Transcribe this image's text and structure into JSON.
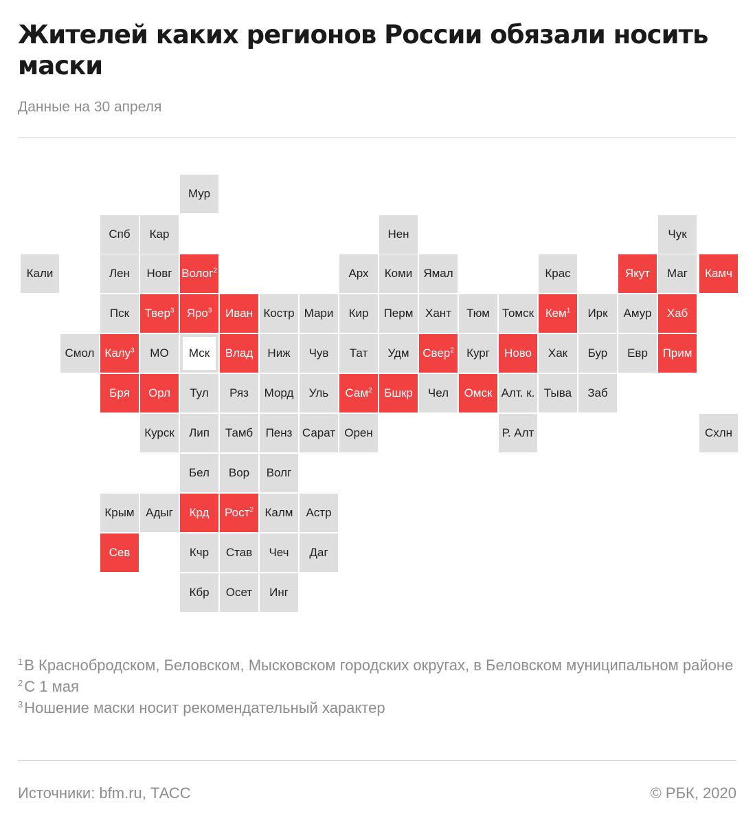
{
  "header": {
    "title": "Жителей каких регионов России обязали носить маски",
    "subtitle": "Данные на 30 апреля"
  },
  "colors": {
    "masked": "#f24141",
    "default": "#dedede",
    "text": "#222222",
    "muted": "#8d8d8d"
  },
  "map": {
    "regions": [
      {
        "label": "Мур",
        "row": 0,
        "col": 4,
        "status": "none"
      },
      {
        "label": "Спб",
        "row": 1,
        "col": 2,
        "status": "none"
      },
      {
        "label": "Кар",
        "row": 1,
        "col": 3,
        "status": "none"
      },
      {
        "label": "Нен",
        "row": 1,
        "col": 9,
        "status": "none"
      },
      {
        "label": "Чук",
        "row": 1,
        "col": 16,
        "status": "none"
      },
      {
        "label": "Кали",
        "row": 2,
        "col": 0,
        "status": "none"
      },
      {
        "label": "Лен",
        "row": 2,
        "col": 2,
        "status": "none"
      },
      {
        "label": "Новг",
        "row": 2,
        "col": 3,
        "status": "none"
      },
      {
        "label": "Волог",
        "row": 2,
        "col": 4,
        "status": "masked",
        "note": "2"
      },
      {
        "label": "Арх",
        "row": 2,
        "col": 8,
        "status": "none"
      },
      {
        "label": "Коми",
        "row": 2,
        "col": 9,
        "status": "none"
      },
      {
        "label": "Ямал",
        "row": 2,
        "col": 10,
        "status": "none"
      },
      {
        "label": "Крас",
        "row": 2,
        "col": 13,
        "status": "none"
      },
      {
        "label": "Якут",
        "row": 2,
        "col": 15,
        "status": "masked"
      },
      {
        "label": "Маг",
        "row": 2,
        "col": 16,
        "status": "none"
      },
      {
        "label": "Камч",
        "row": 2,
        "col": 17,
        "status": "masked"
      },
      {
        "label": "Пск",
        "row": 3,
        "col": 2,
        "status": "none"
      },
      {
        "label": "Твер",
        "row": 3,
        "col": 3,
        "status": "masked",
        "note": "3"
      },
      {
        "label": "Яро",
        "row": 3,
        "col": 4,
        "status": "masked",
        "note": "3"
      },
      {
        "label": "Иван",
        "row": 3,
        "col": 5,
        "status": "masked"
      },
      {
        "label": "Костр",
        "row": 3,
        "col": 6,
        "status": "none"
      },
      {
        "label": "Мари",
        "row": 3,
        "col": 7,
        "status": "none"
      },
      {
        "label": "Кир",
        "row": 3,
        "col": 8,
        "status": "none"
      },
      {
        "label": "Перм",
        "row": 3,
        "col": 9,
        "status": "none"
      },
      {
        "label": "Хант",
        "row": 3,
        "col": 10,
        "status": "none"
      },
      {
        "label": "Тюм",
        "row": 3,
        "col": 11,
        "status": "none"
      },
      {
        "label": "Томск",
        "row": 3,
        "col": 12,
        "status": "none"
      },
      {
        "label": "Кем",
        "row": 3,
        "col": 13,
        "status": "masked",
        "note": "1"
      },
      {
        "label": "Ирк",
        "row": 3,
        "col": 14,
        "status": "none"
      },
      {
        "label": "Амур",
        "row": 3,
        "col": 15,
        "status": "none"
      },
      {
        "label": "Хаб",
        "row": 3,
        "col": 16,
        "status": "masked"
      },
      {
        "label": "Смол",
        "row": 4,
        "col": 1,
        "status": "none"
      },
      {
        "label": "Калу",
        "row": 4,
        "col": 2,
        "status": "masked",
        "note": "3"
      },
      {
        "label": "МО",
        "row": 4,
        "col": 3,
        "status": "none"
      },
      {
        "label": "Мск",
        "row": 4,
        "col": 4,
        "status": "capital"
      },
      {
        "label": "Влад",
        "row": 4,
        "col": 5,
        "status": "masked"
      },
      {
        "label": "Ниж",
        "row": 4,
        "col": 6,
        "status": "none"
      },
      {
        "label": "Чув",
        "row": 4,
        "col": 7,
        "status": "none"
      },
      {
        "label": "Тат",
        "row": 4,
        "col": 8,
        "status": "none"
      },
      {
        "label": "Удм",
        "row": 4,
        "col": 9,
        "status": "none"
      },
      {
        "label": "Свер",
        "row": 4,
        "col": 10,
        "status": "masked",
        "note": "2"
      },
      {
        "label": "Кург",
        "row": 4,
        "col": 11,
        "status": "none"
      },
      {
        "label": "Ново",
        "row": 4,
        "col": 12,
        "status": "masked"
      },
      {
        "label": "Хак",
        "row": 4,
        "col": 13,
        "status": "none"
      },
      {
        "label": "Бур",
        "row": 4,
        "col": 14,
        "status": "none"
      },
      {
        "label": "Евр",
        "row": 4,
        "col": 15,
        "status": "none"
      },
      {
        "label": "Прим",
        "row": 4,
        "col": 16,
        "status": "masked"
      },
      {
        "label": "Бря",
        "row": 5,
        "col": 2,
        "status": "masked"
      },
      {
        "label": "Орл",
        "row": 5,
        "col": 3,
        "status": "masked"
      },
      {
        "label": "Тул",
        "row": 5,
        "col": 4,
        "status": "none"
      },
      {
        "label": "Ряз",
        "row": 5,
        "col": 5,
        "status": "none"
      },
      {
        "label": "Морд",
        "row": 5,
        "col": 6,
        "status": "none"
      },
      {
        "label": "Уль",
        "row": 5,
        "col": 7,
        "status": "none"
      },
      {
        "label": "Сам",
        "row": 5,
        "col": 8,
        "status": "masked",
        "note": "2"
      },
      {
        "label": "Бшкр",
        "row": 5,
        "col": 9,
        "status": "masked"
      },
      {
        "label": "Чел",
        "row": 5,
        "col": 10,
        "status": "none"
      },
      {
        "label": "Омск",
        "row": 5,
        "col": 11,
        "status": "masked"
      },
      {
        "label": "Алт. к.",
        "row": 5,
        "col": 12,
        "status": "none"
      },
      {
        "label": "Тыва",
        "row": 5,
        "col": 13,
        "status": "none"
      },
      {
        "label": "Заб",
        "row": 5,
        "col": 14,
        "status": "none"
      },
      {
        "label": "Курск",
        "row": 6,
        "col": 3,
        "status": "none"
      },
      {
        "label": "Лип",
        "row": 6,
        "col": 4,
        "status": "none"
      },
      {
        "label": "Тамб",
        "row": 6,
        "col": 5,
        "status": "none"
      },
      {
        "label": "Пенз",
        "row": 6,
        "col": 6,
        "status": "none"
      },
      {
        "label": "Сарат",
        "row": 6,
        "col": 7,
        "status": "none"
      },
      {
        "label": "Орен",
        "row": 6,
        "col": 8,
        "status": "none"
      },
      {
        "label": "Р. Алт",
        "row": 6,
        "col": 12,
        "status": "none"
      },
      {
        "label": "Схлн",
        "row": 6,
        "col": 17,
        "status": "none"
      },
      {
        "label": "Бел",
        "row": 7,
        "col": 4,
        "status": "none"
      },
      {
        "label": "Вор",
        "row": 7,
        "col": 5,
        "status": "none"
      },
      {
        "label": "Волг",
        "row": 7,
        "col": 6,
        "status": "none"
      },
      {
        "label": "Крым",
        "row": 8,
        "col": 2,
        "status": "none"
      },
      {
        "label": "Адыг",
        "row": 8,
        "col": 3,
        "status": "none"
      },
      {
        "label": "Крд",
        "row": 8,
        "col": 4,
        "status": "masked"
      },
      {
        "label": "Рост",
        "row": 8,
        "col": 5,
        "status": "masked",
        "note": "2"
      },
      {
        "label": "Калм",
        "row": 8,
        "col": 6,
        "status": "none"
      },
      {
        "label": "Астр",
        "row": 8,
        "col": 7,
        "status": "none"
      },
      {
        "label": "Сев",
        "row": 9,
        "col": 2,
        "status": "masked"
      },
      {
        "label": "Кчр",
        "row": 9,
        "col": 4,
        "status": "none"
      },
      {
        "label": "Став",
        "row": 9,
        "col": 5,
        "status": "none"
      },
      {
        "label": "Чеч",
        "row": 9,
        "col": 6,
        "status": "none"
      },
      {
        "label": "Даг",
        "row": 9,
        "col": 7,
        "status": "none"
      },
      {
        "label": "Кбр",
        "row": 10,
        "col": 4,
        "status": "none"
      },
      {
        "label": "Осет",
        "row": 10,
        "col": 5,
        "status": "none"
      },
      {
        "label": "Инг",
        "row": 10,
        "col": 6,
        "status": "none"
      }
    ]
  },
  "footnotes": [
    {
      "mark": "1",
      "text": "В Краснобродском, Беловском, Мысковском городских округах, в Беловском муниципальном районе"
    },
    {
      "mark": "2",
      "text": "С 1 мая"
    },
    {
      "mark": "3",
      "text": "Ношение маски носит рекомендательный характер"
    }
  ],
  "footer": {
    "sources": "Источники:  bfm.ru,  ТАСС",
    "copyright": "© РБК, 2020"
  }
}
